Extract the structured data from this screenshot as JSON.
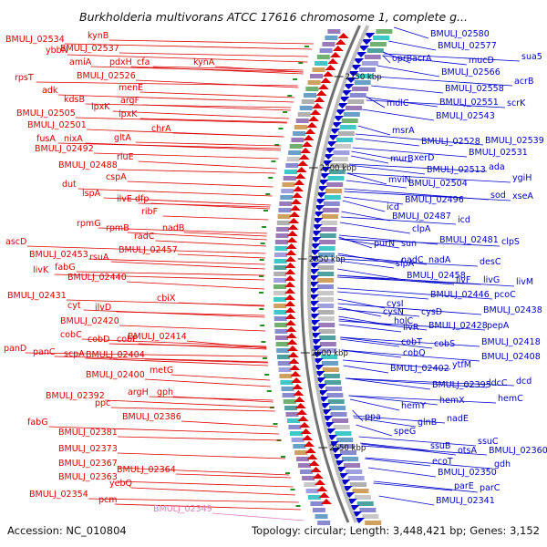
{
  "title": "Burkholderia multivorans ATCC 17616 chromosome 1, complete g...",
  "accession": "Accession: NC_010804",
  "summary": "Topology: circular; Length: 3,448,421 bp; Genes: 3,152",
  "colors": {
    "forward": "#dd0000",
    "reverse": "#0000cc",
    "rna": "#e080c0"
  },
  "ticks": [
    {
      "label": "2750 kbp"
    },
    {
      "label": "2700 kbp"
    },
    {
      "label": "2650 kbp"
    },
    {
      "label": "2600 kbp"
    },
    {
      "label": "2550 kbp"
    }
  ],
  "left_labels": [
    "kynB",
    "BMULJ_02534",
    "ybbN",
    "BMULJ_02537",
    "amiA",
    "pdxH",
    "cfa",
    "kynA",
    "BMULJ_02526",
    "rpsT",
    "menE",
    "adk",
    "kdsB",
    "argF",
    "lpxK",
    "lpxK",
    "BMULJ_02505",
    "BMULJ_02501",
    "chrA",
    "fusA",
    "nixA",
    "gltA",
    "BMULJ_02492",
    "rluE",
    "BMULJ_02488",
    "cspA",
    "dut",
    "ilvE",
    "dfp",
    "lspA",
    "ribF",
    "rpmG",
    "rpmB",
    "nadB",
    "radC",
    "ascD",
    "BMULJ_02457",
    "BMULJ_02453",
    "rsuA",
    "fabG",
    "livK",
    "BMULJ_02440",
    "cbiX",
    "BMULJ_02431",
    "cyt",
    "ilvD",
    "BMULJ_02420",
    "cobC",
    "cobD",
    "cobP",
    "BMULJ_02414",
    "panD",
    "panC",
    "scpA",
    "BMULJ_02404",
    "metG",
    "BMULJ_02400",
    "argH",
    "gph",
    "BMULJ_02392",
    "ppc",
    "BMULJ_02386",
    "fabG",
    "BMULJ_02381",
    "BMULJ_02373",
    "BMULJ_02367",
    "BMULJ_02364",
    "BMULJ_02363",
    "yebQ",
    "BMULJ_02354",
    "pcm",
    "BMULJ_02349"
  ],
  "right_labels": [
    "BMULJ_02580",
    "BMULJ_02577",
    "oprB",
    "acrA",
    "mucD",
    "sua5",
    "BMULJ_02566",
    "acrB",
    "BMULJ_02558",
    "mdlC",
    "BMULJ_02551",
    "scrK",
    "BMULJ_02543",
    "msrA",
    "BMULJ_02528",
    "BMULJ_02539",
    "BMULJ_02531",
    "murB",
    "xerD",
    "BMULJ_02513",
    "ada",
    "mviN",
    "ygiH",
    "BMULJ_02504",
    "sod",
    "xseA",
    "BMULJ_02496",
    "icd",
    "BMULJ_02487",
    "icd",
    "clpA",
    "BMULJ_02481",
    "clpS",
    "purN",
    "sun",
    "slpA",
    "nadC",
    "nadA",
    "desC",
    "BMULJ_02458",
    "livF",
    "livG",
    "livM",
    "cysI",
    "BMULJ_02446",
    "pcoC",
    "cysN",
    "cysD",
    "BMULJ_02438",
    "holC",
    "ilvR",
    "BMULJ_02428",
    "pepA",
    "cobT",
    "cobS",
    "BMULJ_02418",
    "cobQ",
    "BMULJ_02408",
    "ytfM",
    "BMULJ_02402",
    "BMULJ_02395",
    "ldcC",
    "dcd",
    "hemY",
    "hemX",
    "hemC",
    "ppa",
    "glnB",
    "nadE",
    "speG",
    "ssuC",
    "ssuB",
    "otsA",
    "BMULJ_02360",
    "ecoT",
    "gdh",
    "BMULJ_02350",
    "parE",
    "parC",
    "BMULJ_02341"
  ]
}
